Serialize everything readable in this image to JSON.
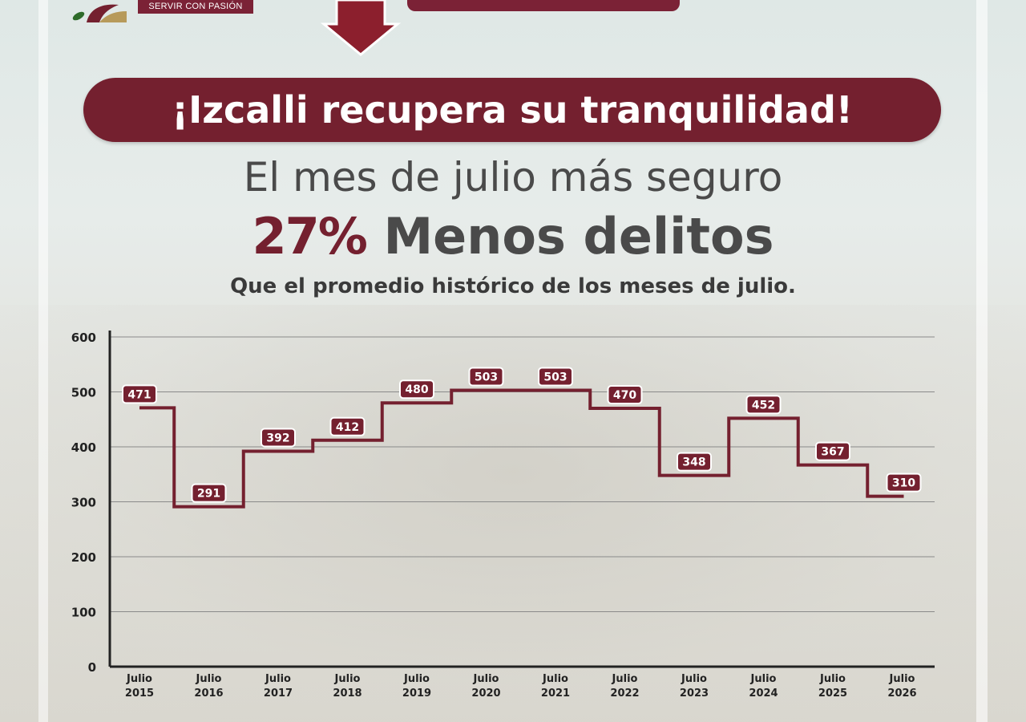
{
  "header": {
    "tagline": "SERVIR CON PASIÓN",
    "banner": "¡Izcalli recupera su tranquilidad!",
    "subtitle": "El mes de julio más seguro",
    "stat_percent": "27%",
    "stat_text": "Menos delitos",
    "note": "Que el promedio histórico de los meses de julio."
  },
  "colors": {
    "brand": "#74202f",
    "text": "#4a4a4a",
    "grid": "#8a8a8a"
  },
  "chart_data": {
    "type": "line",
    "style": "step",
    "categories": [
      [
        "Julio",
        "2015"
      ],
      [
        "Julio",
        "2016"
      ],
      [
        "Julio",
        "2017"
      ],
      [
        "Julio",
        "2018"
      ],
      [
        "Julio",
        "2019"
      ],
      [
        "Julio",
        "2020"
      ],
      [
        "Julio",
        "2021"
      ],
      [
        "Julio",
        "2022"
      ],
      [
        "Julio",
        "2023"
      ],
      [
        "Julio",
        "2024"
      ],
      [
        "Julio",
        "2025"
      ],
      [
        "Julio",
        "2026"
      ]
    ],
    "values": [
      471,
      291,
      392,
      412,
      480,
      503,
      503,
      470,
      348,
      452,
      367,
      310
    ],
    "yticks": [
      "0",
      "100",
      "200",
      "300",
      "400",
      "500",
      "600"
    ],
    "ylim": [
      0,
      600
    ],
    "grid": true,
    "legend": "none"
  }
}
